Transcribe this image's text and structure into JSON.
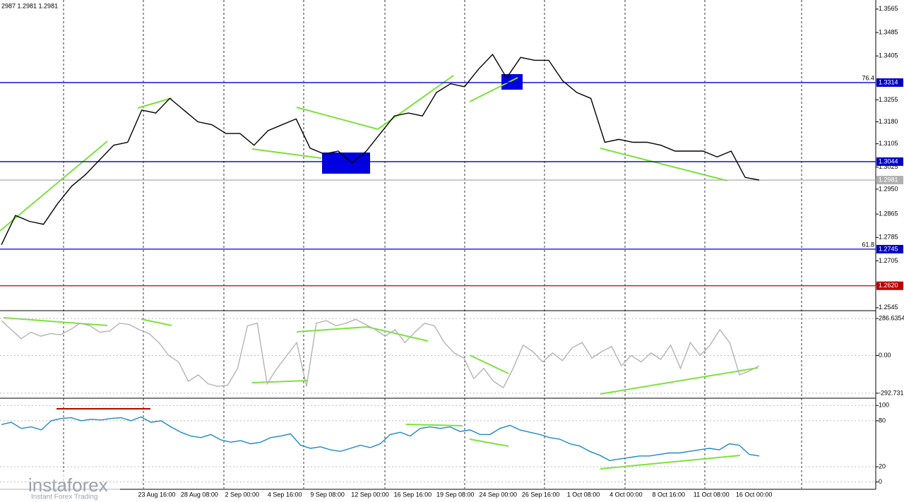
{
  "info": "2987 1.2981 1.2981",
  "watermark": {
    "brand": "instaforex",
    "tagline": "Instant Forex Trading"
  },
  "chart_data": [
    {
      "type": "line",
      "color": "#000000",
      "values": [
        1.276,
        1.286,
        1.284,
        1.283,
        1.29,
        1.296,
        1.3,
        1.305,
        1.31,
        1.311,
        1.322,
        1.321,
        1.326,
        1.322,
        1.318,
        1.317,
        1.314,
        1.314,
        1.31,
        1.315,
        1.317,
        1.319,
        1.309,
        1.307,
        1.308,
        1.304,
        1.308,
        1.314,
        1.32,
        1.321,
        1.32,
        1.328,
        1.331,
        1.33,
        1.336,
        1.341,
        1.333,
        1.34,
        1.339,
        1.339,
        1.332,
        1.328,
        1.326,
        1.311,
        1.312,
        1.311,
        1.311,
        1.31,
        1.308,
        1.308,
        1.308,
        1.306,
        1.308,
        1.299,
        1.2981
      ],
      "ylim": [
        1.2535,
        1.3596
      ],
      "yticks": [
        1.3565,
        1.3485,
        1.3405,
        1.3255,
        {
          "value": 1.318,
          "label": "1.3180"
        },
        1.3105,
        1.3025,
        {
          "value": 1.295,
          "label": "1.2950"
        },
        1.2865,
        1.2785,
        1.2705,
        1.2625,
        1.2545
      ],
      "levels": [
        {
          "value": 1.3314,
          "color": "#0000c8",
          "note": "76.4"
        },
        {
          "value": 1.3044,
          "color": "#0000c8"
        },
        {
          "value": 1.2981,
          "color": "#b0b0b0"
        },
        {
          "value": 1.2745,
          "color": "#0000c8",
          "note": "61.8"
        },
        {
          "value": 1.262,
          "label": "1.2620",
          "color": "#c00000"
        }
      ]
    },
    {
      "type": "line",
      "color": "#b4b4b4",
      "values": [
        270,
        200,
        130,
        180,
        150,
        170,
        160,
        200,
        250,
        230,
        180,
        190,
        250,
        240,
        200,
        170,
        100,
        0,
        -50,
        -200,
        -150,
        -220,
        -240,
        -230,
        -100,
        230,
        250,
        -220,
        -100,
        0,
        100,
        -240,
        250,
        270,
        230,
        250,
        280,
        240,
        200,
        150,
        200,
        100,
        180,
        250,
        230,
        100,
        20,
        -20,
        -180,
        -100,
        -200,
        -250,
        -100,
        80,
        30,
        -50,
        20,
        -40,
        60,
        100,
        -20,
        30,
        70,
        -80,
        0,
        -50,
        20,
        -30,
        80,
        -100,
        100,
        0,
        80,
        200,
        100,
        -150,
        -120,
        -80
      ],
      "ylim": [
        -326,
        331
      ],
      "yticks": [
        286.6354,
        {
          "value": 0,
          "label": "0.00"
        },
        -292.731
      ]
    },
    {
      "type": "line",
      "color": "#1e88c8",
      "values": [
        75,
        78,
        70,
        72,
        68,
        80,
        83,
        84,
        80,
        82,
        81,
        83,
        84,
        80,
        85,
        78,
        80,
        72,
        65,
        60,
        58,
        62,
        55,
        52,
        54,
        50,
        52,
        58,
        60,
        63,
        48,
        44,
        46,
        42,
        40,
        44,
        48,
        45,
        50,
        62,
        65,
        60,
        70,
        72,
        70,
        72,
        66,
        68,
        62,
        62,
        70,
        74,
        68,
        65,
        62,
        58,
        56,
        50,
        47,
        40,
        35,
        28,
        30,
        32,
        34,
        34,
        36,
        38,
        38,
        40,
        42,
        44,
        42,
        50,
        48,
        36,
        34
      ],
      "ylim": [
        -8.6,
        107.6
      ],
      "yticks": [
        100,
        80,
        20,
        0
      ],
      "xtick_labels": [
        "23 Aug 16:00",
        "28 Aug 08:00",
        "2 Sep 00:00",
        "4 Sep 16:00",
        "9 Sep 08:00",
        "12 Sep 00:00",
        "16 Sep 16:00",
        "19 Sep 08:00",
        "24 Sep 00:00",
        "26 Sep 16:00",
        "1 Oct 08:00",
        "4 Oct 00:00",
        "8 Oct 16:00",
        "11 Oct 08:00",
        "16 Oct 00:00"
      ]
    }
  ]
}
